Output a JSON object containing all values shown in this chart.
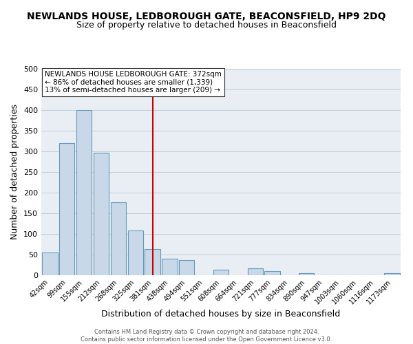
{
  "title": "NEWLANDS HOUSE, LEDBOROUGH GATE, BEACONSFIELD, HP9 2DQ",
  "subtitle": "Size of property relative to detached houses in Beaconsfield",
  "xlabel": "Distribution of detached houses by size in Beaconsfield",
  "ylabel": "Number of detached properties",
  "bar_labels": [
    "42sqm",
    "99sqm",
    "155sqm",
    "212sqm",
    "268sqm",
    "325sqm",
    "381sqm",
    "438sqm",
    "494sqm",
    "551sqm",
    "608sqm",
    "664sqm",
    "721sqm",
    "777sqm",
    "834sqm",
    "890sqm",
    "947sqm",
    "1003sqm",
    "1060sqm",
    "1116sqm",
    "1173sqm"
  ],
  "bar_values": [
    55,
    320,
    400,
    297,
    177,
    108,
    63,
    40,
    37,
    0,
    13,
    0,
    17,
    10,
    0,
    5,
    0,
    0,
    0,
    0,
    5
  ],
  "bar_color": "#c8d8e8",
  "bar_edge_color": "#6699bb",
  "reference_line_index": 6,
  "reference_line_color": "#cc0000",
  "annotation_text": "NEWLANDS HOUSE LEDBOROUGH GATE: 372sqm\n← 86% of detached houses are smaller (1,339)\n13% of semi-detached houses are larger (209) →",
  "annotation_box_color": "#ffffff",
  "annotation_box_edge": "#333333",
  "ylim": [
    0,
    500
  ],
  "footer1": "Contains HM Land Registry data © Crown copyright and database right 2024.",
  "footer2": "Contains public sector information licensed under the Open Government Licence v3.0.",
  "background_color": "#ffffff",
  "plot_bg_color": "#e8eef4",
  "grid_color": "#c0ccd8",
  "title_fontsize": 10,
  "subtitle_fontsize": 9,
  "tick_label_fontsize": 7,
  "axis_label_fontsize": 9
}
